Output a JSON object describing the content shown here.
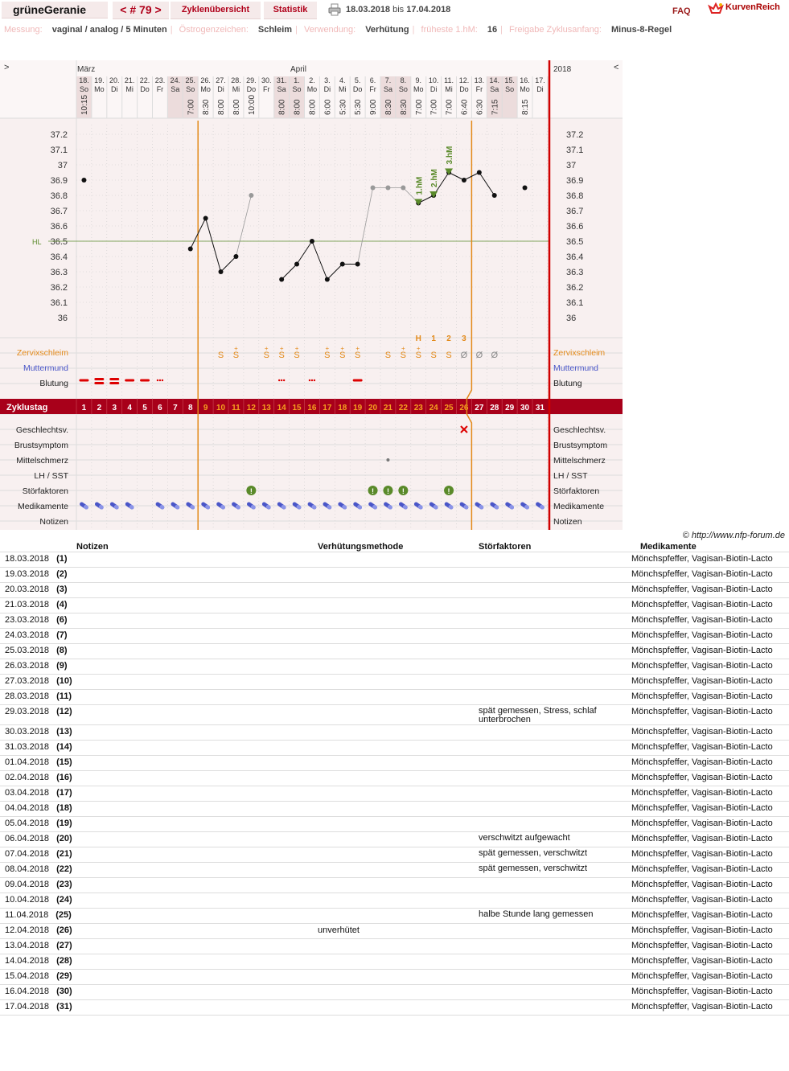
{
  "topbar": {
    "username": "grüneGeranie",
    "cycle_nav": "< # 79 >",
    "cycle_overview": "Zyklenübersicht",
    "statistics": "Statistik",
    "date_from": "18.03.2018",
    "date_bis": "bis",
    "date_to": "17.04.2018",
    "faq": "FAQ",
    "logo_text": "KurvenReich",
    "print_icon": "printer-icon"
  },
  "info": [
    {
      "label": "Messung:",
      "value": "vaginal / analog / 5 Minuten"
    },
    {
      "label": "Östrogenzeichen:",
      "value": "Schleim"
    },
    {
      "label": "Verwendung:",
      "value": "Verhütung"
    },
    {
      "label": "früheste 1.hM:",
      "value": "16"
    },
    {
      "label": "Freigabe Zyklusanfang:",
      "value": "Minus-8-Regel"
    }
  ],
  "chart": {
    "nav_left": ">",
    "nav_right": "<",
    "month_march": "März",
    "month_april": "April",
    "year": "2018",
    "days": [
      {
        "d": "18.",
        "w": "So",
        "t": "10:15",
        "we": true
      },
      {
        "d": "19.",
        "w": "Mo",
        "t": "",
        "we": false
      },
      {
        "d": "20.",
        "w": "Di",
        "t": "",
        "we": false
      },
      {
        "d": "21.",
        "w": "Mi",
        "t": "",
        "we": false
      },
      {
        "d": "22.",
        "w": "Do",
        "t": "",
        "we": false
      },
      {
        "d": "23.",
        "w": "Fr",
        "t": "",
        "we": false
      },
      {
        "d": "24.",
        "w": "Sa",
        "t": "",
        "we": true
      },
      {
        "d": "25.",
        "w": "So",
        "t": "7:00",
        "we": true
      },
      {
        "d": "26.",
        "w": "Mo",
        "t": "8:30",
        "we": false
      },
      {
        "d": "27.",
        "w": "Di",
        "t": "8:00",
        "we": false
      },
      {
        "d": "28.",
        "w": "Mi",
        "t": "8:00",
        "we": false
      },
      {
        "d": "29.",
        "w": "Do",
        "t": "10:00",
        "we": false
      },
      {
        "d": "30.",
        "w": "Fr",
        "t": "",
        "we": false
      },
      {
        "d": "31.",
        "w": "Sa",
        "t": "8:00",
        "we": true
      },
      {
        "d": "1.",
        "w": "So",
        "t": "8:00",
        "we": true
      },
      {
        "d": "2.",
        "w": "Mo",
        "t": "8:00",
        "we": false
      },
      {
        "d": "3.",
        "w": "Di",
        "t": "6:00",
        "we": false
      },
      {
        "d": "4.",
        "w": "Mi",
        "t": "5:30",
        "we": false
      },
      {
        "d": "5.",
        "w": "Do",
        "t": "5:30",
        "we": false
      },
      {
        "d": "6.",
        "w": "Fr",
        "t": "9:00",
        "we": false
      },
      {
        "d": "7.",
        "w": "Sa",
        "t": "8:30",
        "we": true
      },
      {
        "d": "8.",
        "w": "So",
        "t": "8:30",
        "we": true
      },
      {
        "d": "9.",
        "w": "Mo",
        "t": "7:00",
        "we": false
      },
      {
        "d": "10.",
        "w": "Di",
        "t": "7:00",
        "we": false
      },
      {
        "d": "11.",
        "w": "Mi",
        "t": "7:00",
        "we": false
      },
      {
        "d": "12.",
        "w": "Do",
        "t": "6:40",
        "we": false
      },
      {
        "d": "13.",
        "w": "Fr",
        "t": "6:30",
        "we": false
      },
      {
        "d": "14.",
        "w": "Sa",
        "t": "7:15",
        "we": true
      },
      {
        "d": "15.",
        "w": "So",
        "t": "",
        "we": true
      },
      {
        "d": "16.",
        "w": "Mo",
        "t": "8:15",
        "we": false
      },
      {
        "d": "17.",
        "w": "Di",
        "t": "",
        "we": false
      }
    ],
    "temp_ticks": [
      "37.2",
      "37.1",
      "37",
      "36.9",
      "36.8",
      "36.7",
      "36.6",
      "36.5",
      "36.4",
      "36.3",
      "36.2",
      "36.1",
      "36"
    ],
    "hl_label": "HL",
    "temperatures": [
      36.9,
      null,
      null,
      null,
      null,
      null,
      null,
      36.45,
      36.65,
      36.3,
      36.4,
      36.8,
      null,
      36.25,
      36.35,
      36.5,
      36.25,
      36.35,
      36.35,
      36.85,
      36.85,
      36.85,
      36.75,
      36.8,
      36.95,
      36.9,
      36.95,
      36.8,
      null,
      36.85,
      null
    ],
    "excluded_days": [
      11,
      19,
      20,
      21
    ],
    "hm_labels": [
      {
        "day": 22,
        "label": "1.hM"
      },
      {
        "day": 23,
        "label": "2.hM"
      },
      {
        "day": 24,
        "label": "3.hM"
      }
    ],
    "peak_labels": [
      {
        "day": 22,
        "label": "H"
      },
      {
        "day": 23,
        "label": "1"
      },
      {
        "day": 24,
        "label": "2"
      },
      {
        "day": 25,
        "label": "3"
      }
    ],
    "row_labels": {
      "cervix": "Zervixschleim",
      "muttermund": "Muttermund",
      "blutung": "Blutung",
      "zyklustag": "Zyklustag",
      "sex": "Geschlechtsv.",
      "brust": "Brustsymptom",
      "mittel": "Mittelschmerz",
      "lh": "LH / SST",
      "stoer": "Störfaktoren",
      "med": "Medikamente",
      "notizen": "Notizen"
    },
    "cervix": [
      "",
      "",
      "",
      "",
      "",
      "",
      "",
      "",
      "",
      "S",
      "S+",
      "",
      "S+",
      "S+",
      "S+",
      "",
      "S+",
      "S+",
      "S+",
      "",
      "S",
      "S+",
      "S+",
      "S",
      "S",
      "Ø",
      "Ø",
      "Ø",
      "",
      "",
      ""
    ],
    "bleeding": [
      "line",
      "heavy",
      "heavy",
      "line",
      "line",
      "dots",
      "",
      "",
      "",
      "",
      "",
      "",
      "",
      "dots",
      "",
      "dots",
      "",
      "",
      "line",
      "",
      "",
      "",
      "",
      "",
      "",
      "",
      "",
      "",
      "",
      "",
      ""
    ],
    "cycle_days": [
      1,
      2,
      3,
      4,
      5,
      6,
      7,
      8,
      9,
      10,
      11,
      12,
      13,
      14,
      15,
      16,
      17,
      18,
      19,
      20,
      21,
      22,
      23,
      24,
      25,
      26,
      27,
      28,
      29,
      30,
      31
    ],
    "infertile_start": 26,
    "sex_days": [
      25
    ],
    "midpain_days": [
      20
    ],
    "disturbance_days": [
      11,
      19,
      20,
      21,
      24
    ],
    "medication_days": [
      0,
      1,
      2,
      3,
      5,
      6,
      7,
      8,
      9,
      10,
      11,
      12,
      13,
      14,
      15,
      16,
      17,
      18,
      19,
      20,
      21,
      22,
      23,
      24,
      25,
      26,
      27,
      28,
      29,
      30
    ]
  },
  "footer": "© http://www.nfp-forum.de",
  "notes_table": {
    "headers": {
      "notes": "Notizen",
      "method": "Verhütungsmethode",
      "disturb": "Störfaktoren",
      "meds": "Medikamente"
    },
    "rows": [
      {
        "date": "18.03.2018",
        "day": "(1)",
        "method": "",
        "disturb": "",
        "meds": "Mönchspfeffer, Vagisan-Biotin-Lacto"
      },
      {
        "date": "19.03.2018",
        "day": "(2)",
        "method": "",
        "disturb": "",
        "meds": "Mönchspfeffer, Vagisan-Biotin-Lacto"
      },
      {
        "date": "20.03.2018",
        "day": "(3)",
        "method": "",
        "disturb": "",
        "meds": "Mönchspfeffer, Vagisan-Biotin-Lacto"
      },
      {
        "date": "21.03.2018",
        "day": "(4)",
        "method": "",
        "disturb": "",
        "meds": "Mönchspfeffer, Vagisan-Biotin-Lacto"
      },
      {
        "date": "23.03.2018",
        "day": "(6)",
        "method": "",
        "disturb": "",
        "meds": "Mönchspfeffer, Vagisan-Biotin-Lacto"
      },
      {
        "date": "24.03.2018",
        "day": "(7)",
        "method": "",
        "disturb": "",
        "meds": "Mönchspfeffer, Vagisan-Biotin-Lacto"
      },
      {
        "date": "25.03.2018",
        "day": "(8)",
        "method": "",
        "disturb": "",
        "meds": "Mönchspfeffer, Vagisan-Biotin-Lacto"
      },
      {
        "date": "26.03.2018",
        "day": "(9)",
        "method": "",
        "disturb": "",
        "meds": "Mönchspfeffer, Vagisan-Biotin-Lacto"
      },
      {
        "date": "27.03.2018",
        "day": "(10)",
        "method": "",
        "disturb": "",
        "meds": "Mönchspfeffer, Vagisan-Biotin-Lacto"
      },
      {
        "date": "28.03.2018",
        "day": "(11)",
        "method": "",
        "disturb": "",
        "meds": "Mönchspfeffer, Vagisan-Biotin-Lacto"
      },
      {
        "date": "29.03.2018",
        "day": "(12)",
        "method": "",
        "disturb": "spät gemessen, Stress, schlaf unterbrochen",
        "meds": "Mönchspfeffer, Vagisan-Biotin-Lacto"
      },
      {
        "date": "30.03.2018",
        "day": "(13)",
        "method": "",
        "disturb": "",
        "meds": "Mönchspfeffer, Vagisan-Biotin-Lacto"
      },
      {
        "date": "31.03.2018",
        "day": "(14)",
        "method": "",
        "disturb": "",
        "meds": "Mönchspfeffer, Vagisan-Biotin-Lacto"
      },
      {
        "date": "01.04.2018",
        "day": "(15)",
        "method": "",
        "disturb": "",
        "meds": "Mönchspfeffer, Vagisan-Biotin-Lacto"
      },
      {
        "date": "02.04.2018",
        "day": "(16)",
        "method": "",
        "disturb": "",
        "meds": "Mönchspfeffer, Vagisan-Biotin-Lacto"
      },
      {
        "date": "03.04.2018",
        "day": "(17)",
        "method": "",
        "disturb": "",
        "meds": "Mönchspfeffer, Vagisan-Biotin-Lacto"
      },
      {
        "date": "04.04.2018",
        "day": "(18)",
        "method": "",
        "disturb": "",
        "meds": "Mönchspfeffer, Vagisan-Biotin-Lacto"
      },
      {
        "date": "05.04.2018",
        "day": "(19)",
        "method": "",
        "disturb": "",
        "meds": "Mönchspfeffer, Vagisan-Biotin-Lacto"
      },
      {
        "date": "06.04.2018",
        "day": "(20)",
        "method": "",
        "disturb": "verschwitzt aufgewacht",
        "meds": "Mönchspfeffer, Vagisan-Biotin-Lacto"
      },
      {
        "date": "07.04.2018",
        "day": "(21)",
        "method": "",
        "disturb": "spät gemessen, verschwitzt",
        "meds": "Mönchspfeffer, Vagisan-Biotin-Lacto"
      },
      {
        "date": "08.04.2018",
        "day": "(22)",
        "method": "",
        "disturb": "spät gemessen, verschwitzt",
        "meds": "Mönchspfeffer, Vagisan-Biotin-Lacto"
      },
      {
        "date": "09.04.2018",
        "day": "(23)",
        "method": "",
        "disturb": "",
        "meds": "Mönchspfeffer, Vagisan-Biotin-Lacto"
      },
      {
        "date": "10.04.2018",
        "day": "(24)",
        "method": "",
        "disturb": "",
        "meds": "Mönchspfeffer, Vagisan-Biotin-Lacto"
      },
      {
        "date": "11.04.2018",
        "day": "(25)",
        "method": "",
        "disturb": "halbe Stunde lang gemessen",
        "meds": "Mönchspfeffer, Vagisan-Biotin-Lacto"
      },
      {
        "date": "12.04.2018",
        "day": "(26)",
        "method": "unverhütet",
        "disturb": "",
        "meds": "Mönchspfeffer, Vagisan-Biotin-Lacto"
      },
      {
        "date": "13.04.2018",
        "day": "(27)",
        "method": "",
        "disturb": "",
        "meds": "Mönchspfeffer, Vagisan-Biotin-Lacto"
      },
      {
        "date": "14.04.2018",
        "day": "(28)",
        "method": "",
        "disturb": "",
        "meds": "Mönchspfeffer, Vagisan-Biotin-Lacto"
      },
      {
        "date": "15.04.2018",
        "day": "(29)",
        "method": "",
        "disturb": "",
        "meds": "Mönchspfeffer, Vagisan-Biotin-Lacto"
      },
      {
        "date": "16.04.2018",
        "day": "(30)",
        "method": "",
        "disturb": "",
        "meds": "Mönchspfeffer, Vagisan-Biotin-Lacto"
      },
      {
        "date": "17.04.2018",
        "day": "(31)",
        "method": "",
        "disturb": "",
        "meds": "Mönchspfeffer, Vagisan-Biotin-Lacto"
      }
    ]
  },
  "colors": {
    "accent": "#b0001a",
    "orange": "#e38a1a",
    "green": "#5a8a2a",
    "blue": "#4a56c8",
    "band": "#a8001a"
  }
}
